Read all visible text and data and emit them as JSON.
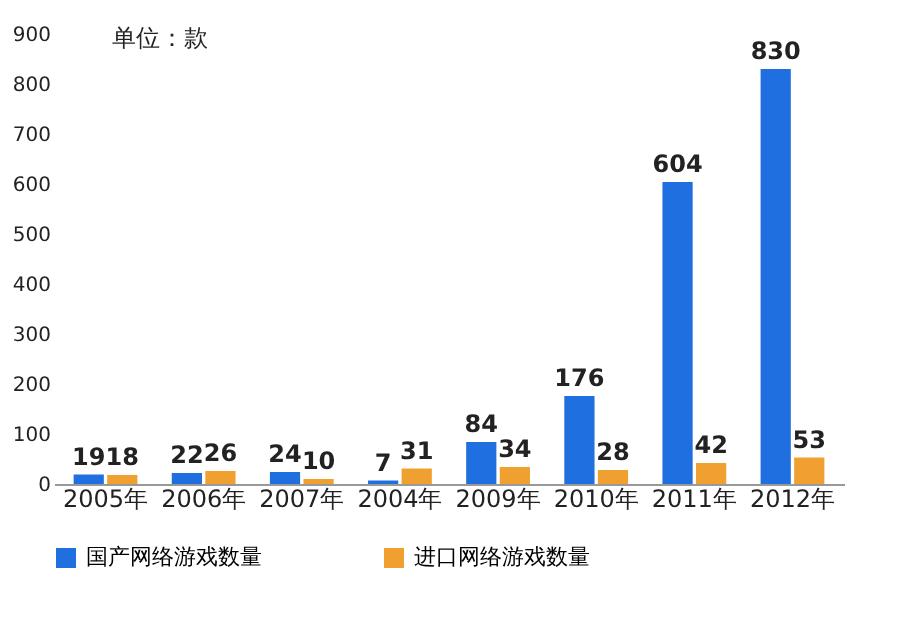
{
  "chart_data": {
    "type": "bar",
    "annotations": [
      "单位：款"
    ],
    "categories": [
      "2005年",
      "2006年",
      "2007年",
      "2004年",
      "2009年",
      "2010年",
      "2011年",
      "2012年"
    ],
    "series": [
      {
        "name": "国产网络游戏数量",
        "color": "#1f6fe0",
        "values": [
          19,
          22,
          24,
          7,
          84,
          176,
          604,
          830
        ]
      },
      {
        "name": "进口网络游戏数量",
        "color": "#f0a030",
        "values": [
          18,
          26,
          10,
          31,
          34,
          28,
          42,
          53
        ]
      }
    ],
    "ylim": [
      0,
      900
    ],
    "yticks": [
      0,
      100,
      200,
      300,
      400,
      500,
      600,
      700,
      800,
      900
    ],
    "data_labels": true,
    "legend": "bottom",
    "grid": false
  }
}
